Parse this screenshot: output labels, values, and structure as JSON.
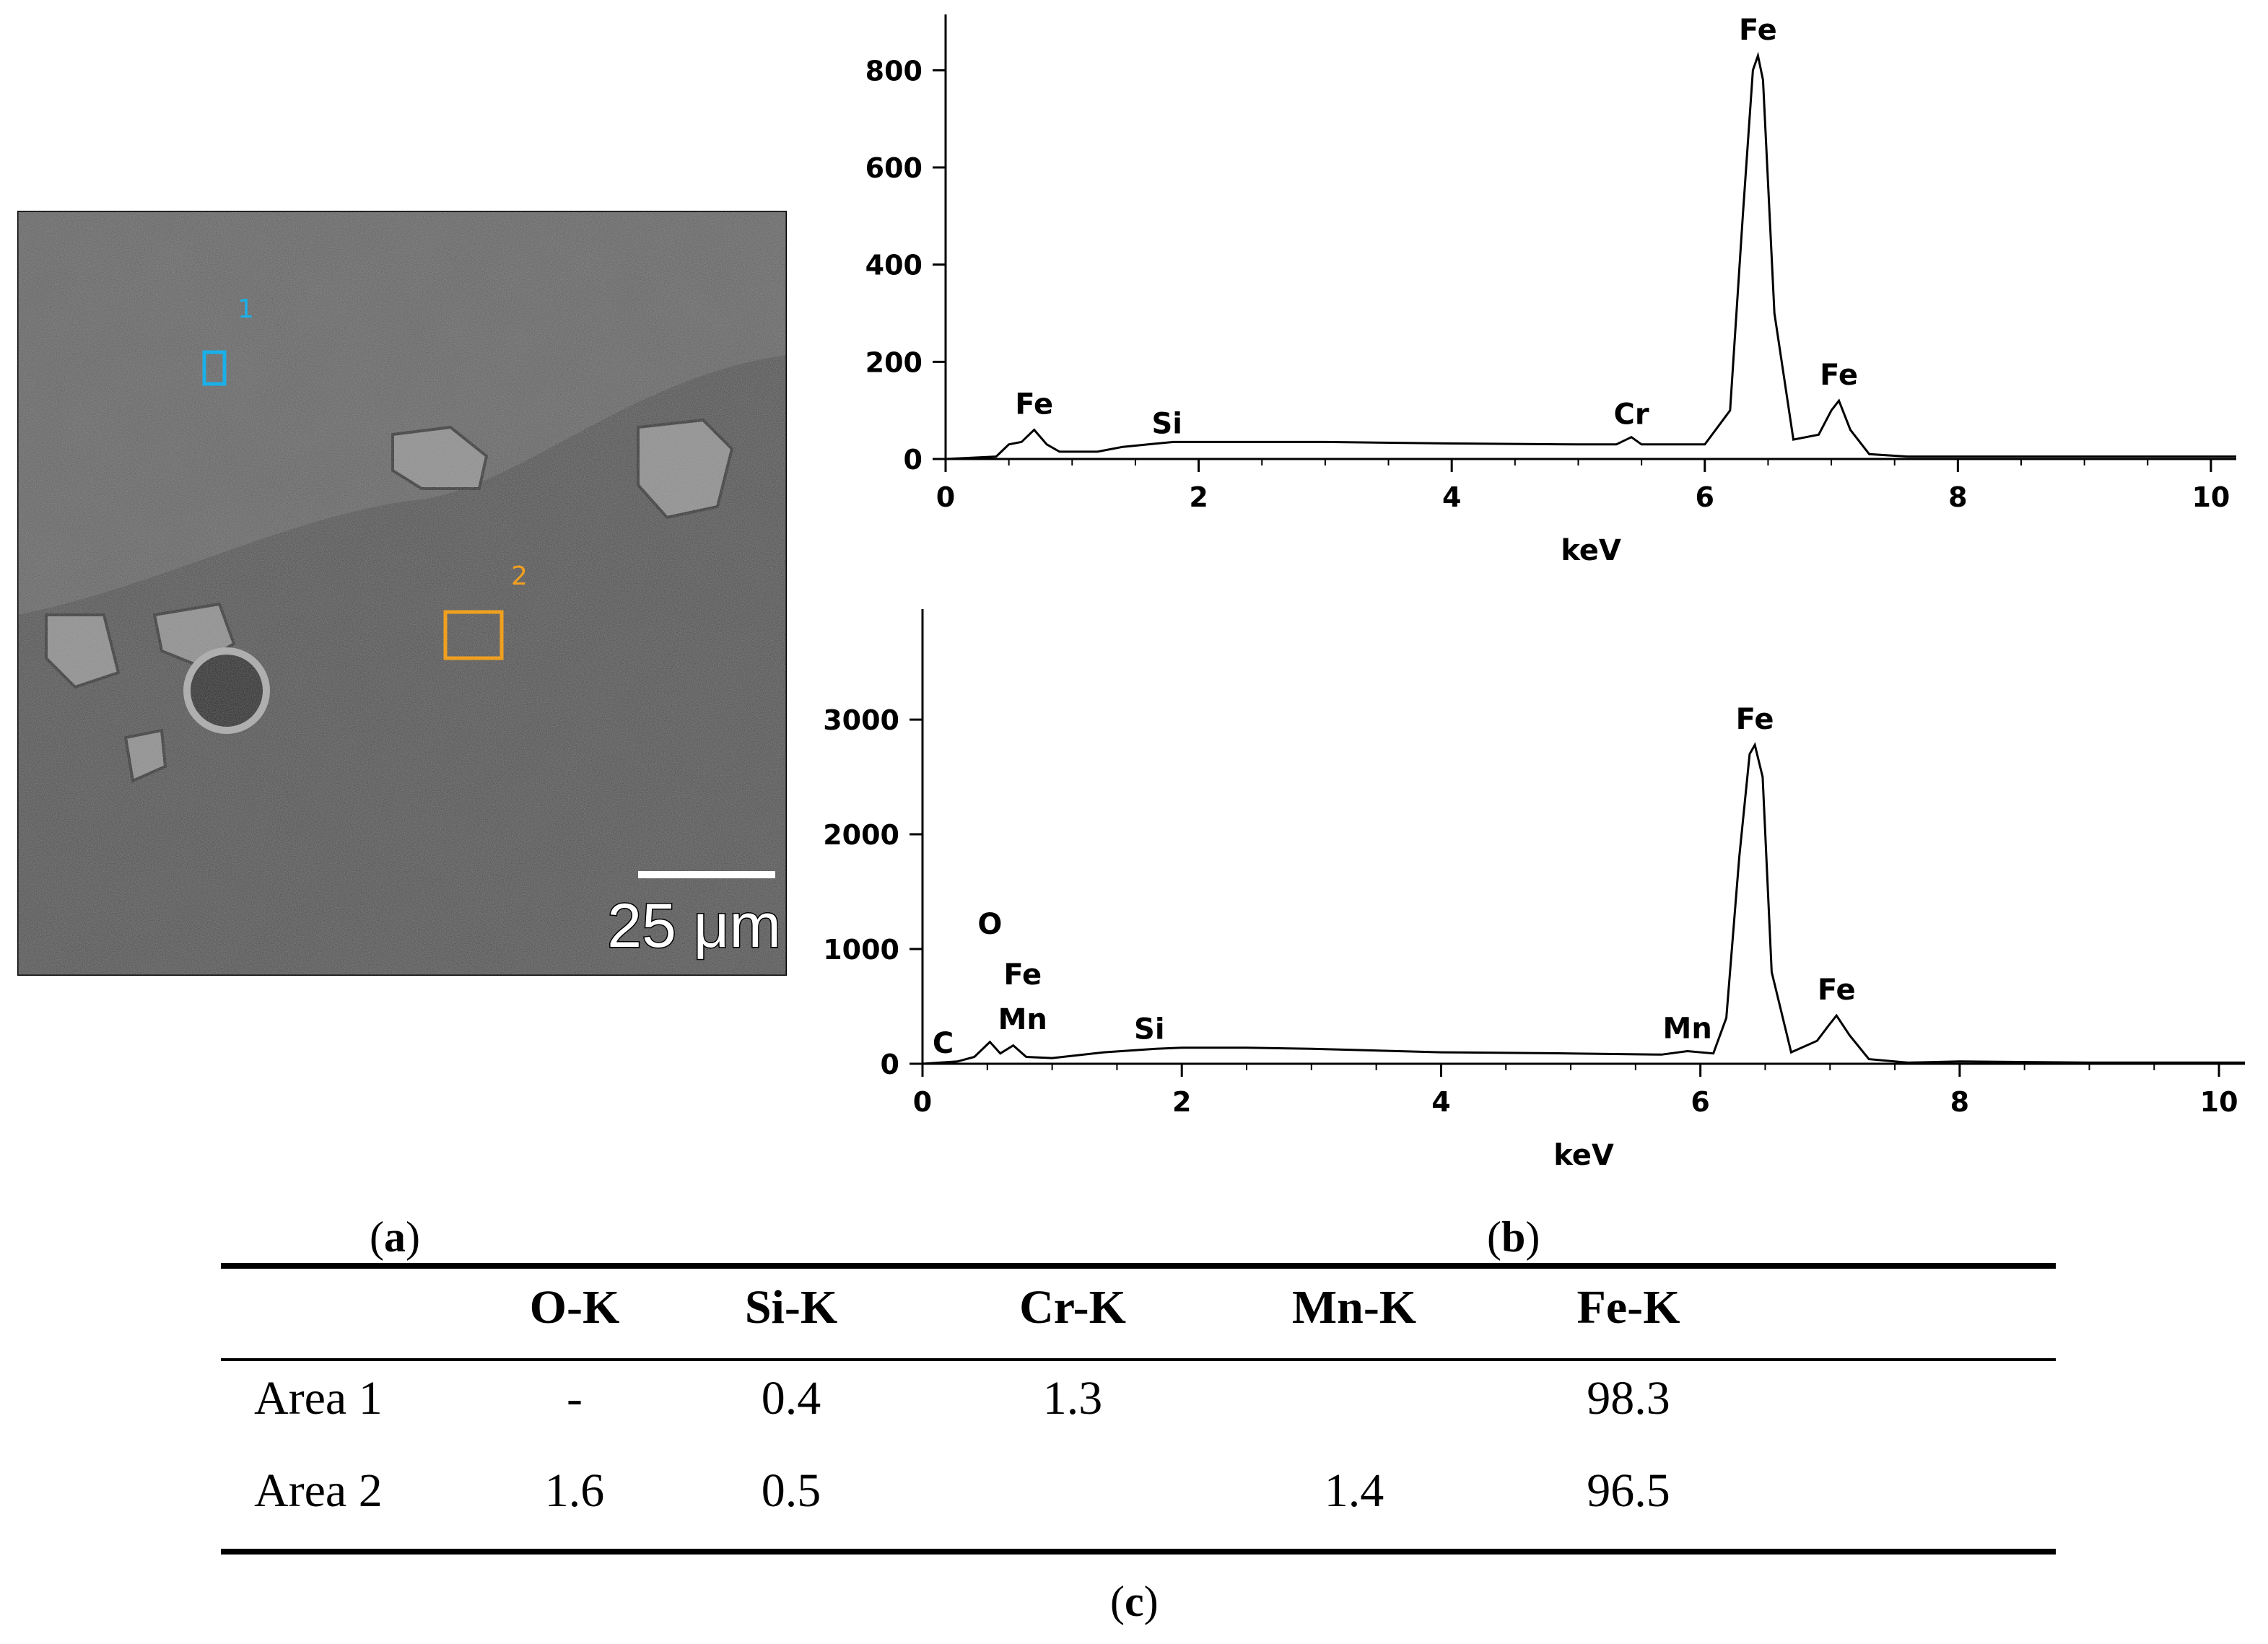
{
  "panel_a": {
    "label": "a",
    "area1_marker": "1",
    "area2_marker": "2",
    "scale_bar": "25 μm",
    "area1_color": "#1ab0e8",
    "area2_color": "#f0a020"
  },
  "panel_b": {
    "label": "b"
  },
  "panel_c": {
    "label": "c"
  },
  "chart_data": [
    {
      "type": "line",
      "title": "",
      "xlabel": "keV",
      "ylabel": "",
      "xlim": [
        0,
        10.2
      ],
      "ylim": [
        0,
        900
      ],
      "xticks": [
        0,
        2,
        4,
        6,
        8,
        10
      ],
      "yticks": [
        0,
        200,
        400,
        600,
        800
      ],
      "series": [
        {
          "x": [
            0,
            0.4,
            0.5,
            0.6,
            0.7,
            0.8,
            0.9,
            1.2,
            1.4,
            1.6,
            1.8,
            2.0,
            2.5,
            3.0,
            4.0,
            5.0,
            5.3,
            5.42,
            5.5,
            6.0,
            6.2,
            6.3,
            6.38,
            6.42,
            6.46,
            6.55,
            6.7,
            6.9,
            7.0,
            7.06,
            7.15,
            7.3,
            7.6,
            8.0,
            9.0,
            10.2
          ],
          "values": [
            0,
            5,
            30,
            35,
            60,
            30,
            15,
            15,
            25,
            30,
            35,
            35,
            35,
            35,
            32,
            30,
            30,
            45,
            30,
            30,
            100,
            500,
            800,
            830,
            780,
            300,
            40,
            50,
            100,
            120,
            60,
            10,
            5,
            5,
            5,
            5
          ]
        }
      ],
      "annotations": [
        {
          "text": "Fe",
          "x": 0.7,
          "y": 60
        },
        {
          "text": "Si",
          "x": 1.75,
          "y": 35
        },
        {
          "text": "Cr",
          "x": 5.42,
          "y": 45
        },
        {
          "text": "Fe",
          "x": 6.42,
          "y": 830
        },
        {
          "text": "Fe",
          "x": 7.06,
          "y": 120
        }
      ]
    },
    {
      "type": "line",
      "title": "",
      "xlabel": "keV",
      "ylabel": "",
      "xlim": [
        0,
        10.2
      ],
      "ylim": [
        0,
        3900
      ],
      "xticks": [
        0,
        2,
        4,
        6,
        8,
        10
      ],
      "yticks": [
        0,
        1000,
        2000,
        3000
      ],
      "series": [
        {
          "x": [
            0,
            0.27,
            0.4,
            0.52,
            0.6,
            0.7,
            0.8,
            1.0,
            1.4,
            1.8,
            2.0,
            2.5,
            3.0,
            4.0,
            5.0,
            5.7,
            5.9,
            6.1,
            6.2,
            6.3,
            6.38,
            6.42,
            6.48,
            6.55,
            6.7,
            6.9,
            7.0,
            7.05,
            7.15,
            7.3,
            7.6,
            8.0,
            9.0,
            10.2
          ],
          "values": [
            0,
            20,
            60,
            190,
            90,
            160,
            60,
            50,
            100,
            130,
            140,
            140,
            130,
            100,
            90,
            80,
            110,
            90,
            400,
            1800,
            2700,
            2780,
            2500,
            800,
            100,
            200,
            350,
            420,
            250,
            40,
            10,
            20,
            10,
            10
          ]
        }
      ],
      "annotations": [
        {
          "text": "C",
          "x": 0.27,
          "y": 20
        },
        {
          "text": "Mn",
          "x": 0.65,
          "y": 190
        },
        {
          "text": "Fe",
          "x": 0.65,
          "y": 190
        },
        {
          "text": "O",
          "x": 0.52,
          "y": 190
        },
        {
          "text": "Si",
          "x": 1.75,
          "y": 130
        },
        {
          "text": "Mn",
          "x": 5.9,
          "y": 110
        },
        {
          "text": "Fe",
          "x": 6.42,
          "y": 2780
        },
        {
          "text": "Fe",
          "x": 7.05,
          "y": 420
        }
      ]
    },
    {
      "type": "table",
      "columns": [
        "",
        "O-K",
        "Si-K",
        "Cr-K",
        "Mn-K",
        "Fe-K"
      ],
      "rows": [
        [
          "Area 1",
          "-",
          "0.4",
          "1.3",
          "",
          "98.3"
        ],
        [
          "Area 2",
          "1.6",
          "0.5",
          "",
          "1.4",
          "96.5"
        ]
      ]
    }
  ]
}
